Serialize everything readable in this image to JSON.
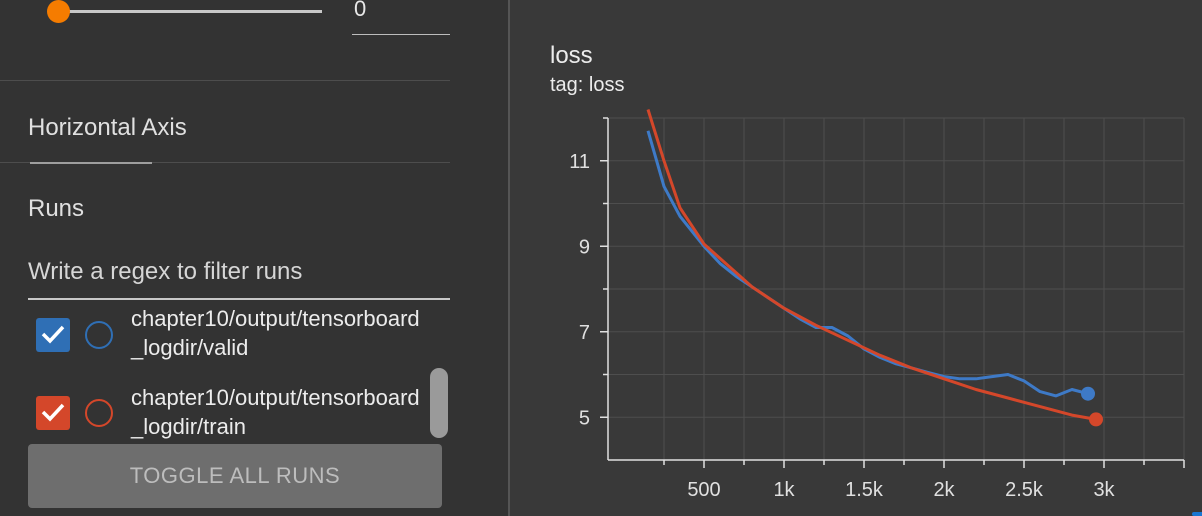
{
  "slider": {
    "value": "0",
    "accent": "#f57c00"
  },
  "sections": {
    "horizontal_axis": "Horizontal Axis",
    "runs": "Runs"
  },
  "filter": {
    "placeholder": "Write a regex to filter runs"
  },
  "runs": [
    {
      "label": "chapter10/output/tensorboard_logdir/valid",
      "color": "#2f6fb5",
      "checked": true
    },
    {
      "label": "chapter10/output/tensorboard_logdir/train",
      "color": "#d4472a",
      "checked": true
    }
  ],
  "toggle_all": {
    "label": "TOGGLE ALL RUNS"
  },
  "card": {
    "title": "loss",
    "tag": "tag: loss"
  },
  "chart_data": {
    "type": "line",
    "title": "loss",
    "xlabel": "",
    "ylabel": "",
    "xlim": [
      -100,
      3500
    ],
    "ylim": [
      4,
      12
    ],
    "x_ticks": [
      500,
      1000,
      1500,
      2000,
      2500,
      3000
    ],
    "x_tick_labels": [
      "500",
      "1k",
      "1.5k",
      "2k",
      "2.5k",
      "3k"
    ],
    "y_ticks": [
      5,
      7,
      9,
      11
    ],
    "y_tick_labels": [
      "5",
      "7",
      "9",
      "11"
    ],
    "grid": true,
    "series": [
      {
        "name": "chapter10/output/tensorboard_logdir/valid",
        "color": "#3e7ac7",
        "points": [
          [
            150,
            11.7
          ],
          [
            250,
            10.4
          ],
          [
            350,
            9.7
          ],
          [
            500,
            9.0
          ],
          [
            600,
            8.6
          ],
          [
            700,
            8.3
          ],
          [
            800,
            8.05
          ],
          [
            900,
            7.8
          ],
          [
            1000,
            7.55
          ],
          [
            1100,
            7.3
          ],
          [
            1200,
            7.1
          ],
          [
            1300,
            7.1
          ],
          [
            1400,
            6.9
          ],
          [
            1500,
            6.6
          ],
          [
            1600,
            6.4
          ],
          [
            1700,
            6.25
          ],
          [
            1800,
            6.15
          ],
          [
            1900,
            6.05
          ],
          [
            2000,
            5.95
          ],
          [
            2100,
            5.9
          ],
          [
            2200,
            5.9
          ],
          [
            2300,
            5.95
          ],
          [
            2400,
            6.0
          ],
          [
            2500,
            5.85
          ],
          [
            2600,
            5.6
          ],
          [
            2700,
            5.5
          ],
          [
            2800,
            5.65
          ],
          [
            2900,
            5.55
          ]
        ]
      },
      {
        "name": "chapter10/output/tensorboard_logdir/train",
        "color": "#d4472a",
        "points": [
          [
            150,
            12.2
          ],
          [
            250,
            11.0
          ],
          [
            350,
            9.9
          ],
          [
            500,
            9.05
          ],
          [
            650,
            8.55
          ],
          [
            800,
            8.05
          ],
          [
            1000,
            7.55
          ],
          [
            1200,
            7.15
          ],
          [
            1400,
            6.8
          ],
          [
            1600,
            6.45
          ],
          [
            1800,
            6.15
          ],
          [
            2000,
            5.9
          ],
          [
            2200,
            5.65
          ],
          [
            2400,
            5.45
          ],
          [
            2600,
            5.25
          ],
          [
            2800,
            5.05
          ],
          [
            2950,
            4.95
          ]
        ]
      }
    ]
  }
}
